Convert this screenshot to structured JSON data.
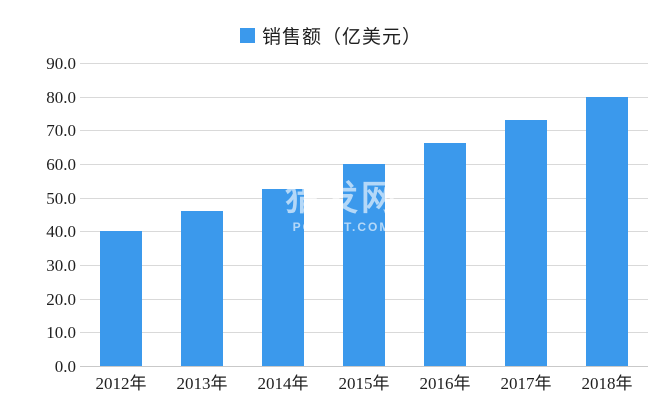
{
  "legend": {
    "label": "销售额（亿美元）"
  },
  "watermark": {
    "line1": "猎发网",
    "line2": "PCBEST.COM"
  },
  "chart_data": {
    "type": "bar",
    "title": "",
    "xlabel": "",
    "ylabel": "",
    "categories": [
      "2012年",
      "2013年",
      "2014年",
      "2015年",
      "2016年",
      "2017年",
      "2018年"
    ],
    "series": [
      {
        "name": "销售额（亿美元）",
        "values": [
          40.0,
          46.0,
          52.5,
          60.0,
          66.3,
          73.0,
          80.0
        ]
      }
    ],
    "ylim": [
      0,
      90
    ],
    "ytick_step": 10,
    "ytick_labels": [
      "0.0",
      "10.0",
      "20.0",
      "30.0",
      "40.0",
      "50.0",
      "60.0",
      "70.0",
      "80.0",
      "90.0"
    ],
    "grid": true,
    "legend_position": "top-center",
    "colors": {
      "bar": "#3B99EC",
      "gridline": "#d9d9d9",
      "baseline": "#c9c9c9",
      "text": "#1f1f1f",
      "background": "#ffffff"
    }
  }
}
